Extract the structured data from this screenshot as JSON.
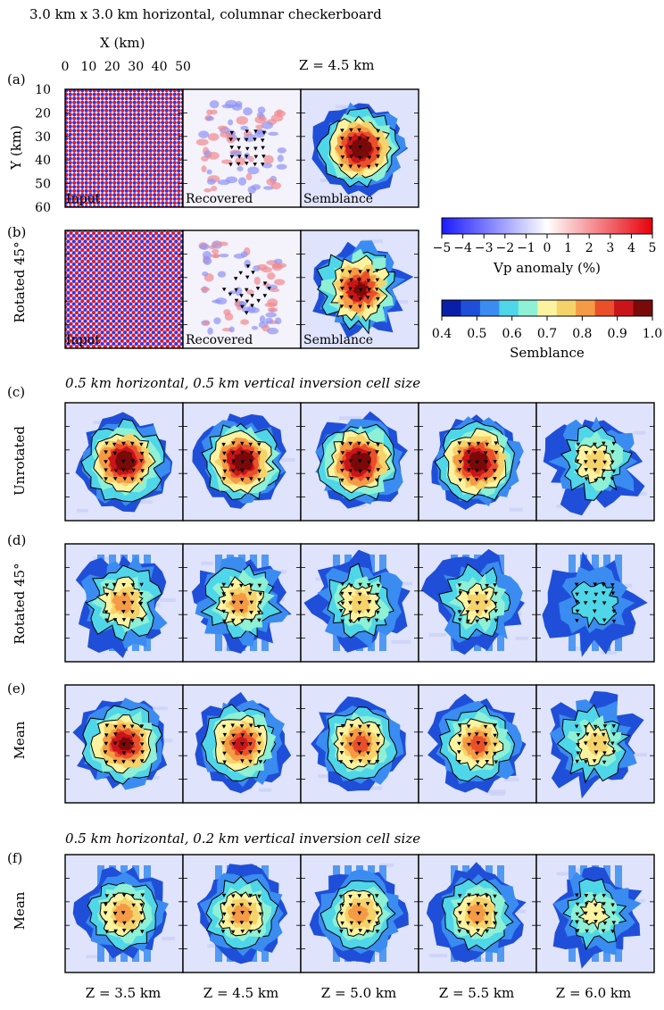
{
  "title": "3.0 km x 3.0 km horizontal, columnar checkerboard",
  "top_axis": {
    "xlabel": "X (km)",
    "xticks": [
      "0",
      "10",
      "20",
      "30",
      "40",
      "50"
    ],
    "ylabel": "Y (km)",
    "yticks": [
      "10",
      "20",
      "30",
      "40",
      "50",
      "60"
    ],
    "depth_label": "Z = 4.5 km"
  },
  "panels": {
    "a": {
      "letter": "(a)",
      "row_label": "",
      "cells": [
        "Input",
        "Recovered",
        "Semblance"
      ]
    },
    "b": {
      "letter": "(b)",
      "row_label": "Rotated 45°",
      "cells": [
        "Input",
        "Recovered",
        "Semblance"
      ]
    },
    "c": {
      "letter": "(c)",
      "row_label": "Unrotated"
    },
    "d": {
      "letter": "(d)",
      "row_label": "Rotated 45°"
    },
    "e": {
      "letter": "(e)",
      "row_label": "Mean"
    },
    "f": {
      "letter": "(f)",
      "row_label": "Mean"
    }
  },
  "section_c_title": "0.5 km horizontal, 0.5 km vertical inversion cell size",
  "section_f_title": "0.5 km horizontal, 0.2 km vertical inversion cell size",
  "depths": [
    "Z = 3.5 km",
    "Z = 4.5 km",
    "Z = 5.0 km",
    "Z = 5.5 km",
    "Z = 6.0 km"
  ],
  "colorbars": {
    "vp": {
      "label": "Vp anomaly (%)",
      "ticks": [
        "−5",
        "−4",
        "−3",
        "−2",
        "−1",
        "0",
        "1",
        "2",
        "3",
        "4",
        "5"
      ],
      "colors": [
        "#1a1aff",
        "#ffffff",
        "#e8000b"
      ]
    },
    "semblance": {
      "label": "Semblance",
      "ticks": [
        "0.4",
        "0.5",
        "0.6",
        "0.7",
        "0.8",
        "0.9",
        "1.0"
      ],
      "colors": [
        "#0a1fa8",
        "#1f4fd8",
        "#3a8cf0",
        "#4fd6e8",
        "#8ef0d4",
        "#fbf3a0",
        "#f6d26a",
        "#f59a45",
        "#e9502a",
        "#c9151a",
        "#7a0a0a"
      ]
    }
  },
  "chart_data": {
    "type": "heatmap",
    "xlim": [
      0,
      50
    ],
    "ylim": [
      10,
      60
    ],
    "semblance_levels": [
      0.4,
      0.5,
      0.6,
      0.7,
      0.8,
      0.9,
      1.0
    ],
    "peak_semblance": {
      "c": [
        0.97,
        0.95,
        0.97,
        0.95,
        0.72
      ],
      "d": [
        0.78,
        0.74,
        0.72,
        0.72,
        0.55
      ],
      "e": [
        0.92,
        0.85,
        0.8,
        0.8,
        0.68
      ],
      "f": [
        0.78,
        0.76,
        0.76,
        0.76,
        0.66
      ]
    }
  }
}
